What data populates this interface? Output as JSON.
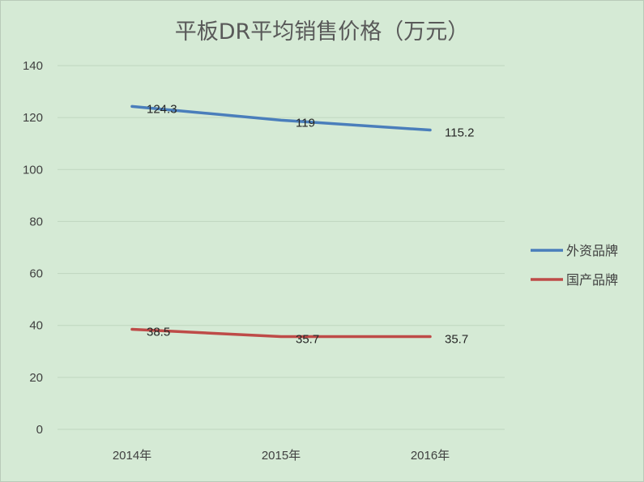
{
  "chart_data": {
    "type": "line",
    "title": "平板DR平均销售价格（万元）",
    "categories": [
      "2014年",
      "2015年",
      "2016年"
    ],
    "series": [
      {
        "name": "外资品牌",
        "values": [
          124.3,
          119,
          115.2
        ],
        "color": "#4a7ebb"
      },
      {
        "name": "国产品牌",
        "values": [
          38.5,
          35.7,
          35.7
        ],
        "color": "#be4b48"
      }
    ],
    "ylim": [
      0,
      140
    ],
    "yticks": [
      0,
      20,
      40,
      60,
      80,
      100,
      120,
      140
    ],
    "grid": true,
    "legend_position": "right",
    "xlabel": "",
    "ylabel": ""
  },
  "colors": {
    "background": "#d5ead5",
    "gridline": "#bfd6bf",
    "axis_text": "#404040"
  }
}
